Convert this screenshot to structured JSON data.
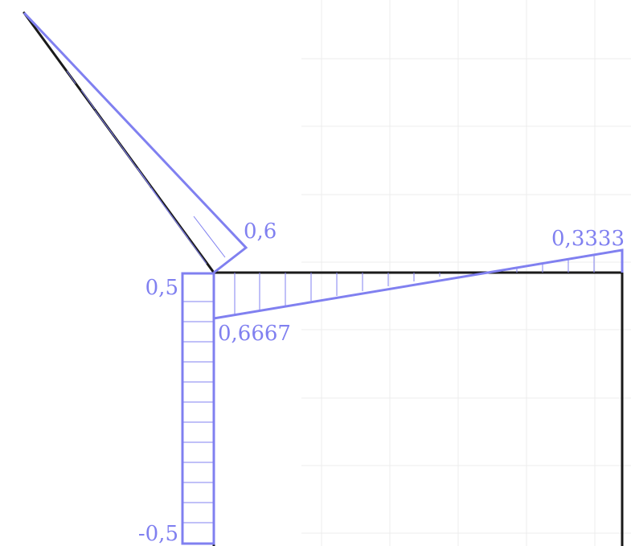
{
  "colors": {
    "diagram": "#8080f0",
    "frame": "#1a1a1a",
    "grid": "#ececec",
    "background": "#ffffff"
  },
  "labels": {
    "brace_tip": "0,6",
    "beam_right": "0,3333",
    "beam_left": "0,6667",
    "column_top": "0,5",
    "column_bottom": "-0,5"
  }
}
